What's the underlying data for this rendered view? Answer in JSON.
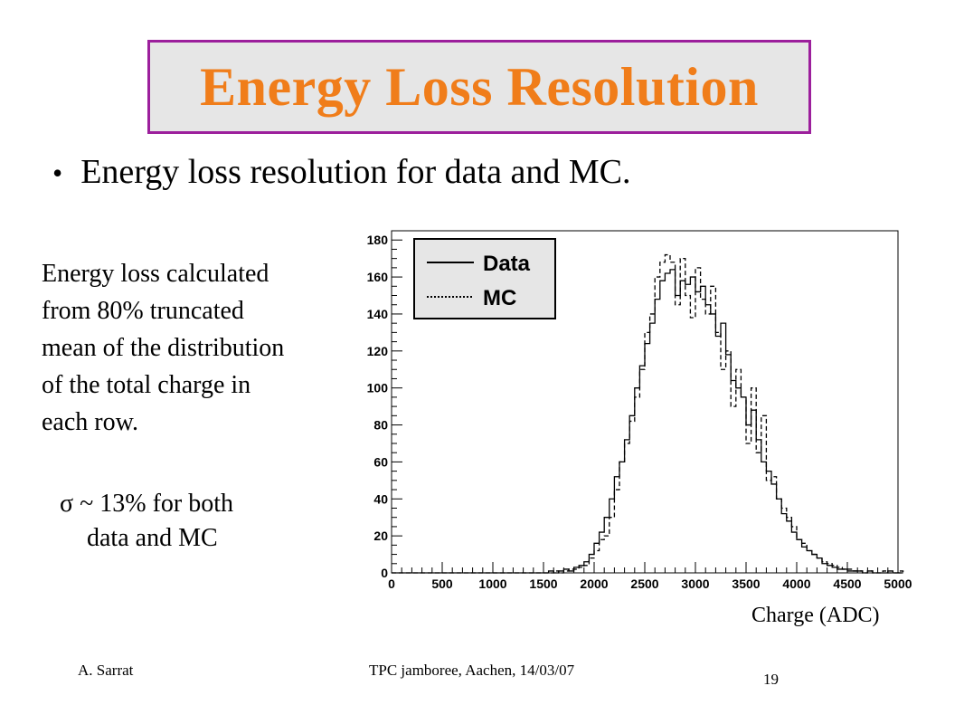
{
  "title": "Energy Loss Resolution",
  "bullet": "Energy loss resolution for data and MC.",
  "description_lines": [
    "Energy loss calculated",
    "from 80% truncated",
    "mean of the distribution",
    "of the total charge in",
    "each row."
  ],
  "sigma_lines": [
    "σ ~ 13% for both",
    "data and MC"
  ],
  "xlabel": "Charge (ADC)",
  "footer": {
    "author": "A. Sarrat",
    "event": "TPC jamboree, Aachen, 14/03/07",
    "page": "19"
  },
  "colors": {
    "title": "#f07d1a",
    "title_border": "#9c1f9c",
    "title_bg": "#e6e6e6"
  },
  "chart_data": {
    "type": "bar",
    "xlim": [
      0,
      5000
    ],
    "ylim": [
      0,
      185
    ],
    "bin_width": 50,
    "x_ticks": [
      0,
      500,
      1000,
      1500,
      2000,
      2500,
      3000,
      3500,
      4000,
      4500,
      5000
    ],
    "y_ticks": [
      0,
      20,
      40,
      60,
      80,
      100,
      120,
      140,
      160,
      180
    ],
    "legend": {
      "position": "top-left",
      "entries": [
        "Data",
        "MC"
      ]
    },
    "series": [
      {
        "name": "Data",
        "style": "solid",
        "bin_start": 1500,
        "values": [
          0,
          1,
          0,
          1,
          2,
          1,
          3,
          4,
          6,
          10,
          16,
          22,
          30,
          40,
          52,
          60,
          72,
          85,
          100,
          112,
          124,
          135,
          148,
          158,
          162,
          164,
          150,
          158,
          156,
          160,
          152,
          155,
          145,
          140,
          128,
          135,
          118,
          104,
          100,
          95,
          80,
          88,
          72,
          60,
          55,
          48,
          40,
          32,
          28,
          22,
          18,
          14,
          12,
          10,
          8,
          5,
          4,
          3,
          2,
          2,
          1,
          1,
          1,
          0,
          1,
          0,
          0,
          0,
          1,
          0,
          0
        ]
      },
      {
        "name": "MC",
        "style": "dashed",
        "bin_start": 1500,
        "values": [
          0,
          0,
          1,
          0,
          1,
          2,
          2,
          3,
          4,
          8,
          12,
          18,
          20,
          30,
          45,
          60,
          70,
          82,
          95,
          110,
          130,
          140,
          160,
          168,
          172,
          168,
          145,
          170,
          150,
          138,
          165,
          148,
          140,
          155,
          130,
          110,
          120,
          90,
          110,
          95,
          70,
          100,
          65,
          85,
          50,
          52,
          40,
          35,
          30,
          25,
          18,
          16,
          12,
          10,
          8,
          6,
          5,
          4,
          3,
          2,
          2,
          1,
          1,
          0,
          1,
          0,
          0,
          1,
          0,
          0,
          1
        ]
      }
    ]
  }
}
